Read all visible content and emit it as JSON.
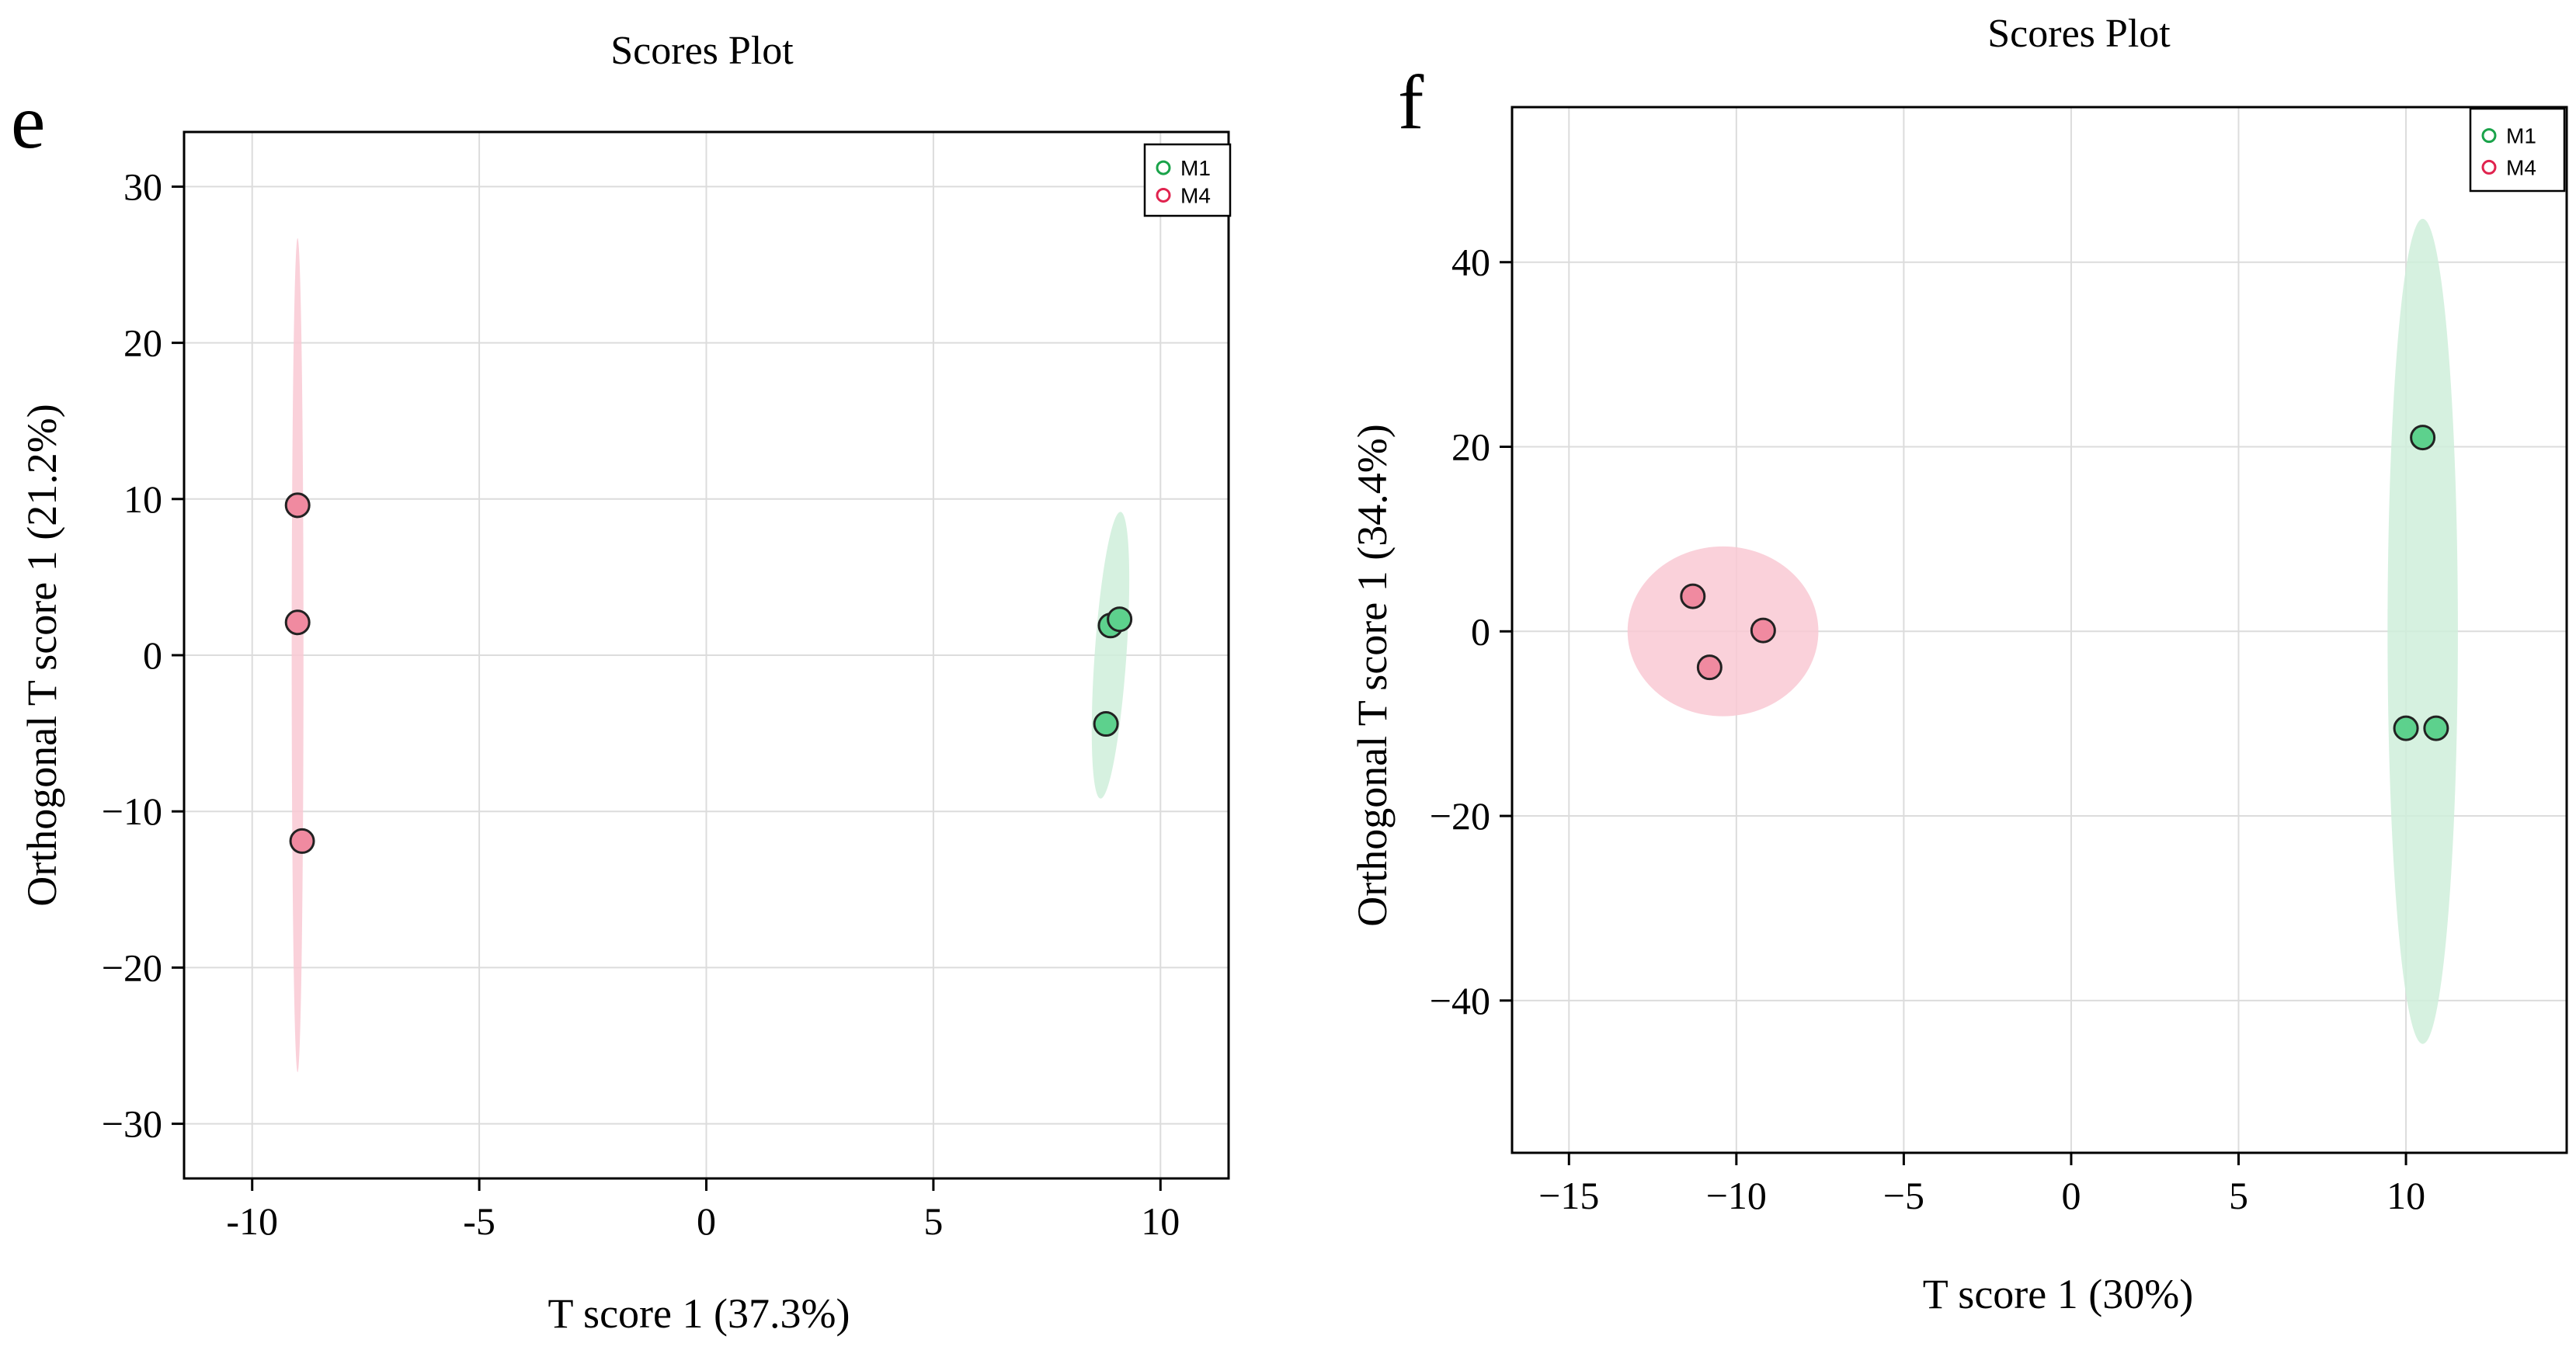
{
  "colors": {
    "m1_fill": "#5dd18d",
    "m1_stroke": "#1aa34a",
    "m1_ellipse": "#cfeedb",
    "m4_fill": "#f08aa0",
    "m4_stroke": "#e0234e",
    "m4_ellipse": "#f9c9d4",
    "grid": "#dcdcdc",
    "axis": "#000000"
  },
  "chart_data": [
    {
      "type": "scatter",
      "panel_label": "e",
      "title": "Scores Plot",
      "xlabel": "T score 1 (37.3%)",
      "ylabel": "Orthogonal T score 1 (21.2%)",
      "xlim": [
        -11.5,
        11.5
      ],
      "ylim": [
        -33.5,
        33.5
      ],
      "xticks": [
        -10,
        -5,
        0,
        5,
        10
      ],
      "xtick_labels": [
        "-10",
        "-5",
        "0",
        "5",
        "10"
      ],
      "yticks": [
        30,
        20,
        10,
        0,
        -10,
        -20,
        -30
      ],
      "ytick_labels": [
        "30",
        "20",
        "10",
        "0",
        "−10",
        "−20",
        "−30"
      ],
      "grid": true,
      "legend": {
        "placement": "top-right",
        "entries": [
          "M1",
          "M4"
        ]
      },
      "series": [
        {
          "name": "M1",
          "points": [
            {
              "x": 8.9,
              "y": 1.9
            },
            {
              "x": 9.1,
              "y": 2.3
            },
            {
              "x": 8.8,
              "y": -4.4
            }
          ],
          "ellipse": {
            "cx": 8.9,
            "cy": 0.0,
            "rx": 0.35,
            "ry": 9.2,
            "angle": 4
          }
        },
        {
          "name": "M4",
          "points": [
            {
              "x": -9.0,
              "y": 9.6
            },
            {
              "x": -9.0,
              "y": 2.1
            },
            {
              "x": -8.9,
              "y": -11.9
            }
          ],
          "ellipse": {
            "cx": -9.0,
            "cy": 0.0,
            "rx": 0.13,
            "ry": 26.7,
            "angle": 0
          }
        }
      ]
    },
    {
      "type": "scatter",
      "panel_label": "f",
      "title": "Scores Plot",
      "xlabel": "T score 1 (30%)",
      "ylabel": "Orthogonal T score 1 (34.4%)",
      "xlim": [
        -16.7,
        14.8
      ],
      "ylim": [
        -56.5,
        56.8
      ],
      "xticks": [
        -15,
        -10,
        -5,
        0,
        5,
        10
      ],
      "xtick_labels": [
        "−15",
        "−10",
        "−5",
        "0",
        "5",
        "10"
      ],
      "yticks": [
        40,
        20,
        0,
        -20,
        -40
      ],
      "ytick_labels": [
        "40",
        "20",
        "0",
        "−20",
        "−40"
      ],
      "grid": true,
      "legend": {
        "placement": "top-right",
        "entries": [
          "M1",
          "M4"
        ]
      },
      "series": [
        {
          "name": "M1",
          "points": [
            {
              "x": 10.5,
              "y": 21.0
            },
            {
              "x": 10.0,
              "y": -10.5
            },
            {
              "x": 10.9,
              "y": -10.5
            }
          ],
          "ellipse": {
            "cx": 10.5,
            "cy": 0.0,
            "rx": 1.05,
            "ry": 44.7,
            "angle": 0
          }
        },
        {
          "name": "M4",
          "points": [
            {
              "x": -11.3,
              "y": 3.8
            },
            {
              "x": -10.8,
              "y": -3.9
            },
            {
              "x": -9.2,
              "y": 0.1
            }
          ],
          "ellipse": {
            "cx": -10.4,
            "cy": 0.0,
            "rx": 2.85,
            "ry": 9.2,
            "angle": 0
          }
        }
      ]
    }
  ]
}
